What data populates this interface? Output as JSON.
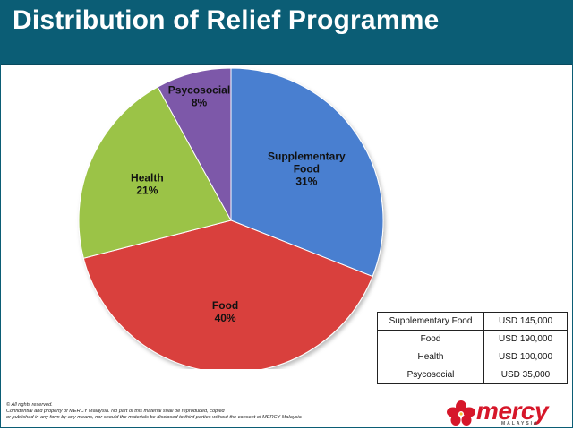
{
  "slide": {
    "title": "Distribution of Relief Programme"
  },
  "chart_data": {
    "type": "pie",
    "title": "Distribution of Relief Programme",
    "slices": [
      {
        "label": "Supplementary Food",
        "label_lines": [
          "Supplementary",
          "Food"
        ],
        "value": 31,
        "percent_label": "31%",
        "color": "#4a7fd0"
      },
      {
        "label": "Food",
        "label_lines": [
          "Food"
        ],
        "value": 40,
        "percent_label": "40%",
        "color": "#d9413e"
      },
      {
        "label": "Health",
        "label_lines": [
          "Health"
        ],
        "value": 21,
        "percent_label": "21%",
        "color": "#9bc346"
      },
      {
        "label": "Psycosocial",
        "label_lines": [
          "Psycosocial"
        ],
        "value": 8,
        "percent_label": "8%",
        "color": "#7d58a9"
      }
    ]
  },
  "table": {
    "rows": [
      {
        "category": "Supplementary Food",
        "amount": "USD 145,000"
      },
      {
        "category": "Food",
        "amount": "USD 190,000"
      },
      {
        "category": "Health",
        "amount": "USD 100,000"
      },
      {
        "category": "Psycosocial",
        "amount": "USD 35,000"
      }
    ]
  },
  "footer": {
    "line1": "© All rights reserved.",
    "line2": "Confidential and property  of MERCY  Malaysia. No part of this material shall be reproduced,  copied",
    "line3": "or published in any form by any means, nor should the materials be disclosed to third parties without the consent of MERCY Malaysia"
  },
  "logo": {
    "word": "mercy",
    "sub": "MALAYSIA",
    "color": "#d6172a"
  }
}
